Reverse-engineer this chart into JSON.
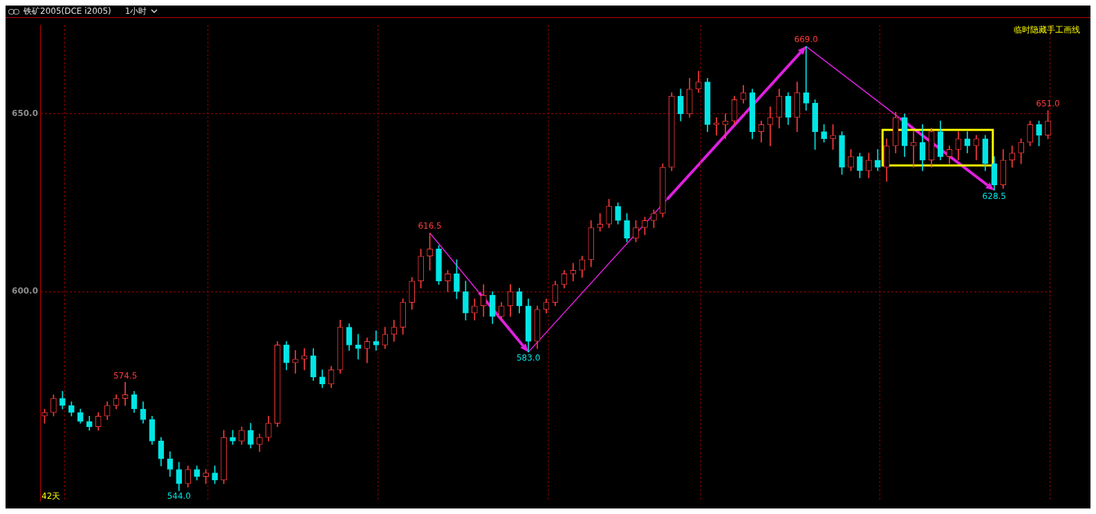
{
  "chart_data": {
    "type": "candlestick",
    "title": "铁矿2005(DCE i2005)",
    "subtitle": "1小时",
    "categories": [
      null,
      null,
      null,
      null,
      null,
      null,
      null,
      null,
      null,
      null,
      null,
      null,
      null,
      null,
      null,
      null,
      null,
      null,
      null,
      null,
      null,
      null,
      null,
      null,
      null,
      null,
      null,
      null,
      null,
      null,
      null,
      null,
      null,
      null,
      null,
      null,
      null,
      null,
      null,
      null,
      null,
      null,
      null,
      null,
      null,
      null,
      null,
      null,
      null,
      null,
      null,
      null,
      null,
      null,
      null,
      null,
      null,
      null,
      null,
      null,
      null,
      null,
      null,
      null,
      null,
      null,
      null,
      null,
      null,
      null,
      null,
      null,
      null,
      null,
      null,
      null,
      null,
      null,
      null,
      null,
      null,
      null,
      null,
      null,
      null,
      null,
      null,
      null,
      null,
      null,
      null,
      null,
      null,
      null,
      null,
      null,
      null,
      null,
      null,
      null,
      null,
      null,
      null,
      null,
      null,
      null,
      null,
      null,
      null,
      null,
      null,
      null,
      null
    ],
    "ohlc": [
      [
        565,
        567,
        563,
        566
      ],
      [
        566,
        571,
        565,
        570
      ],
      [
        570,
        572,
        567,
        568
      ],
      [
        568,
        569,
        565,
        566
      ],
      [
        566,
        567,
        563,
        563.5
      ],
      [
        563.5,
        565,
        561,
        562
      ],
      [
        562,
        566,
        561,
        565
      ],
      [
        565,
        569,
        564,
        568
      ],
      [
        568,
        571,
        567,
        570
      ],
      [
        570,
        574.5,
        568,
        571
      ],
      [
        571,
        572,
        566,
        567
      ],
      [
        567,
        569,
        563,
        564
      ],
      [
        564,
        565,
        557,
        558
      ],
      [
        558,
        559,
        551,
        553
      ],
      [
        553,
        555,
        548,
        550
      ],
      [
        550,
        552,
        544,
        546
      ],
      [
        546,
        551,
        545,
        550
      ],
      [
        550,
        551,
        547,
        548
      ],
      [
        548,
        550,
        546,
        549
      ],
      [
        549,
        551,
        546,
        547
      ],
      [
        547,
        561,
        546,
        559
      ],
      [
        559,
        561,
        557,
        558
      ],
      [
        558,
        562,
        557,
        561
      ],
      [
        561,
        563,
        556,
        557
      ],
      [
        557,
        560,
        555,
        559
      ],
      [
        559,
        565,
        558,
        563
      ],
      [
        563,
        586,
        562,
        585
      ],
      [
        585,
        586,
        578,
        580
      ],
      [
        580,
        583.5,
        577,
        581
      ],
      [
        581,
        584,
        578,
        582
      ],
      [
        582,
        584,
        575,
        576
      ],
      [
        576,
        578,
        573,
        574
      ],
      [
        574,
        579,
        573,
        578
      ],
      [
        578,
        592,
        577,
        590
      ],
      [
        590,
        591,
        583.5,
        585
      ],
      [
        585,
        588,
        581,
        584
      ],
      [
        584,
        587,
        580,
        586
      ],
      [
        586,
        589,
        583.5,
        585
      ],
      [
        585,
        590,
        584,
        588
      ],
      [
        588,
        592,
        586,
        590
      ],
      [
        590,
        598,
        588,
        597
      ],
      [
        597,
        604,
        595,
        603
      ],
      [
        603,
        612,
        601,
        610
      ],
      [
        610,
        616.5,
        606,
        612
      ],
      [
        612,
        613,
        602,
        603
      ],
      [
        603,
        606,
        600,
        605
      ],
      [
        605,
        609,
        598,
        600
      ],
      [
        600,
        603,
        592,
        594
      ],
      [
        594,
        598,
        592,
        596
      ],
      [
        596,
        602,
        593,
        599
      ],
      [
        599,
        600,
        591,
        593
      ],
      [
        593,
        597,
        592,
        596
      ],
      [
        596,
        602,
        593,
        600
      ],
      [
        600,
        601,
        594,
        596
      ],
      [
        596,
        598,
        583,
        586
      ],
      [
        586,
        596,
        584,
        595
      ],
      [
        595,
        598,
        594,
        597
      ],
      [
        597,
        603,
        596,
        602
      ],
      [
        602,
        606,
        601,
        605
      ],
      [
        605,
        608,
        603,
        606
      ],
      [
        606,
        610,
        604,
        609
      ],
      [
        609,
        620,
        607,
        618
      ],
      [
        618,
        622,
        617,
        619
      ],
      [
        619,
        626,
        618,
        624
      ],
      [
        624,
        625,
        619,
        620
      ],
      [
        620,
        622,
        614,
        615
      ],
      [
        615,
        620,
        614,
        618
      ],
      [
        618,
        621,
        616,
        620
      ],
      [
        620,
        623,
        618,
        622
      ],
      [
        622,
        636,
        621,
        635
      ],
      [
        635,
        656,
        634,
        655
      ],
      [
        655,
        657,
        648,
        650
      ],
      [
        650,
        660,
        649,
        657
      ],
      [
        657,
        662,
        656,
        659
      ],
      [
        659,
        660,
        645,
        647
      ],
      [
        647,
        649,
        644,
        647.5
      ],
      [
        647,
        650,
        643,
        648
      ],
      [
        648,
        655,
        647,
        654
      ],
      [
        654,
        658,
        653,
        656
      ],
      [
        656,
        657,
        643,
        645
      ],
      [
        645,
        648,
        642,
        647
      ],
      [
        647,
        652,
        641,
        649
      ],
      [
        649,
        657,
        646,
        655
      ],
      [
        655,
        656,
        647,
        649
      ],
      [
        649,
        659,
        645,
        656
      ],
      [
        656,
        669,
        651,
        653
      ],
      [
        653,
        654,
        640,
        645
      ],
      [
        645,
        647,
        642,
        643
      ],
      [
        643,
        647,
        640,
        644
      ],
      [
        644,
        645,
        633,
        635
      ],
      [
        635,
        640,
        634,
        638
      ],
      [
        638,
        639,
        632,
        634
      ],
      [
        634,
        639,
        632,
        637
      ],
      [
        637,
        640,
        634,
        635
      ],
      [
        635,
        643,
        631,
        641
      ],
      [
        641,
        650.5,
        639,
        649
      ],
      [
        649,
        650,
        638,
        641
      ],
      [
        641,
        645,
        635,
        642
      ],
      [
        642,
        647,
        634,
        637
      ],
      [
        637,
        646,
        635,
        645
      ],
      [
        645,
        648,
        637,
        638
      ],
      [
        638,
        641,
        636,
        640
      ],
      [
        640,
        645,
        637,
        643
      ],
      [
        643,
        645,
        639,
        641
      ],
      [
        641,
        644,
        637,
        643
      ],
      [
        643,
        644,
        634,
        636
      ],
      [
        636,
        638,
        628.5,
        630
      ],
      [
        630,
        640,
        629,
        637
      ],
      [
        637,
        641,
        635,
        639
      ],
      [
        639,
        643,
        636,
        642
      ],
      [
        642,
        648,
        641,
        647
      ],
      [
        647,
        648,
        641,
        644
      ],
      [
        644,
        651,
        643,
        648
      ]
    ],
    "ylim": [
      541,
      675
    ],
    "yticks": [
      {
        "value": 600,
        "label": "600.0"
      },
      {
        "value": 650,
        "label": "650.0"
      }
    ],
    "grid": "y",
    "annotations": [
      "临时隐藏手工画线",
      "42天",
      {
        "text": "574.5",
        "y": 574.5
      },
      {
        "text": "544.0",
        "y": 544
      },
      {
        "text": "616.5",
        "y": 616.5
      },
      {
        "text": "583.0",
        "y": 583
      },
      {
        "text": "669.0",
        "y": 669
      },
      {
        "text": "628.5",
        "y": 628.5
      },
      {
        "text": "651.0",
        "y": 651
      }
    ]
  }
}
